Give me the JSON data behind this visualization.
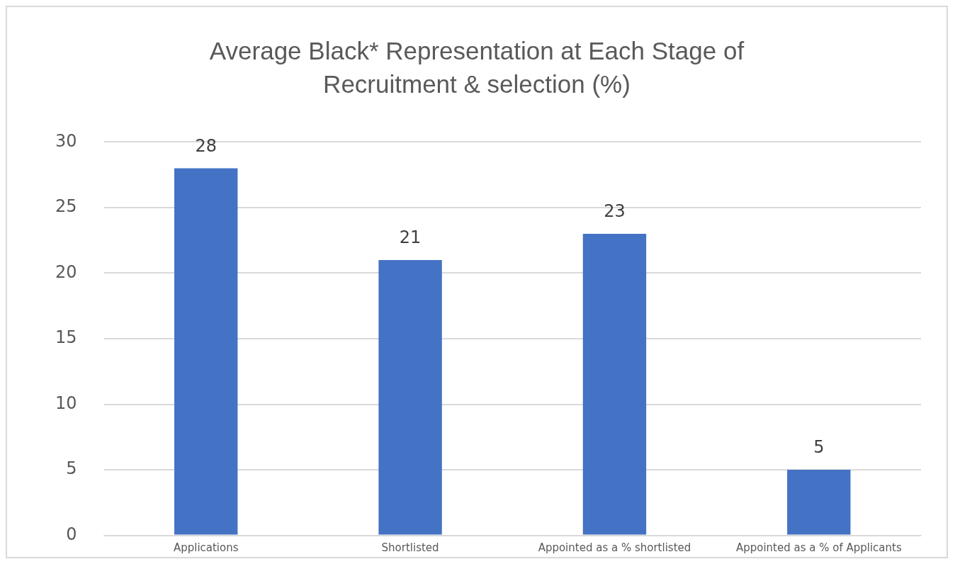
{
  "chart_data": {
    "type": "bar",
    "title": "Average Black* Representation at Each Stage of Recruitment & selection (%)",
    "categories": [
      "Applications",
      "Shortlisted",
      "Appointed as a % shortlisted",
      "Appointed as a % of Applicants"
    ],
    "values": [
      28,
      21,
      23,
      5
    ],
    "color": "#4472c4",
    "ylim": [
      0,
      30
    ],
    "yticks": [
      0,
      5,
      10,
      15,
      20,
      25,
      30
    ],
    "grid": "y",
    "data_labels": true,
    "legend": false
  }
}
